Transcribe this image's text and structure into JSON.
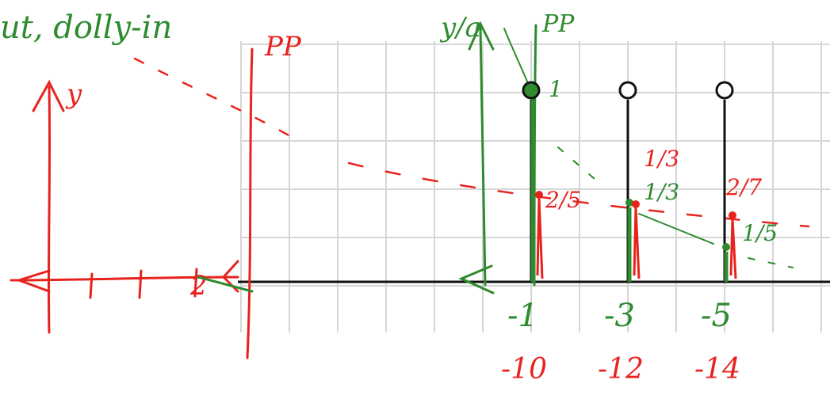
{
  "colors": {
    "grid": "#d6d6d6",
    "axis": "#111111",
    "red_ink": "#e8231e",
    "green_ink": "#2e8b2e",
    "stem": "#111111",
    "background": "#ffffff"
  },
  "header_text": "ut, dolly-in",
  "red_labels": {
    "y_axis": "y",
    "picture_plane": "PP",
    "axis_tick": "2"
  },
  "green_labels": {
    "y_axis": "y/a",
    "picture_plane": "PP",
    "unit_value": "1"
  },
  "samples": [
    {
      "green_label": "-1",
      "red_label": "-10",
      "green_value": "1",
      "red_value": "2/5",
      "filled": true
    },
    {
      "green_label": "-3",
      "red_label": "-12",
      "green_value": "1/3",
      "red_value": "1/3",
      "filled": false
    },
    {
      "green_label": "-5",
      "red_label": "-14",
      "green_value": "1/5",
      "red_value": "2/7",
      "filled": false
    }
  ]
}
